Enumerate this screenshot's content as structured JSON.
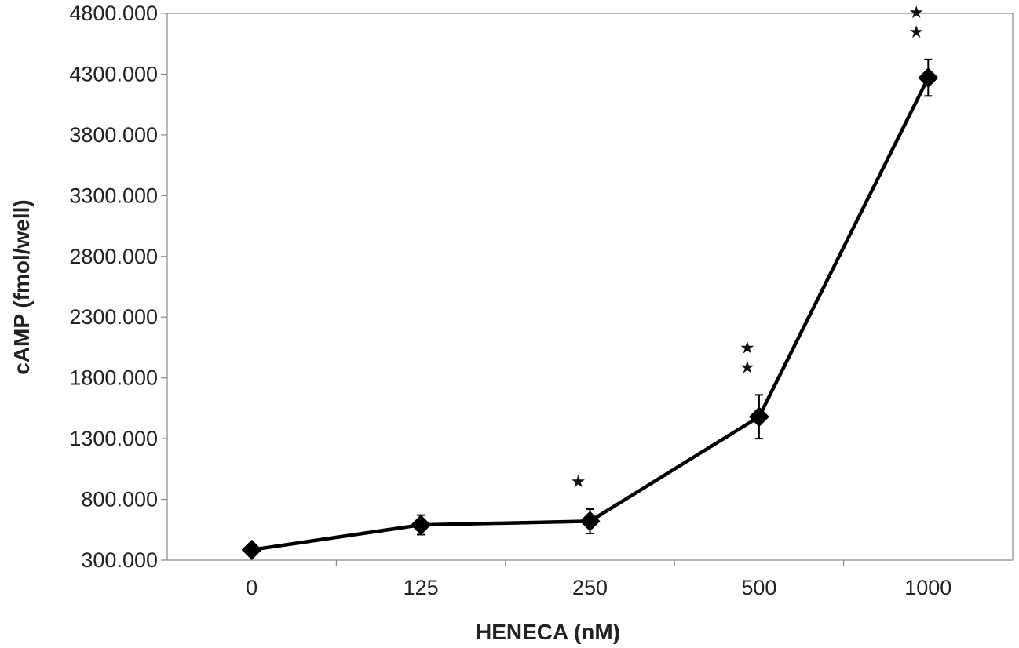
{
  "chart_data": {
    "type": "line",
    "title": "",
    "xlabel": "HENECA (nM)",
    "ylabel": "cAMP (fmol/well)",
    "categories": [
      "0",
      "125",
      "250",
      "500",
      "1000"
    ],
    "ylim": [
      300,
      4800
    ],
    "y_ticks": [
      "300.000",
      "800.000",
      "1300.000",
      "1800.000",
      "2300.000",
      "2800.000",
      "3300.000",
      "3800.000",
      "4300.000",
      "4800.000"
    ],
    "grid": false,
    "legend": "none",
    "series": [
      {
        "values": [
          385,
          590,
          620,
          1480,
          4270
        ],
        "error": [
          0,
          80,
          100,
          180,
          150
        ],
        "marker": "diamond",
        "color": "#000000"
      }
    ],
    "annotations": [
      "",
      "",
      "★",
      "★★",
      "★★"
    ]
  }
}
